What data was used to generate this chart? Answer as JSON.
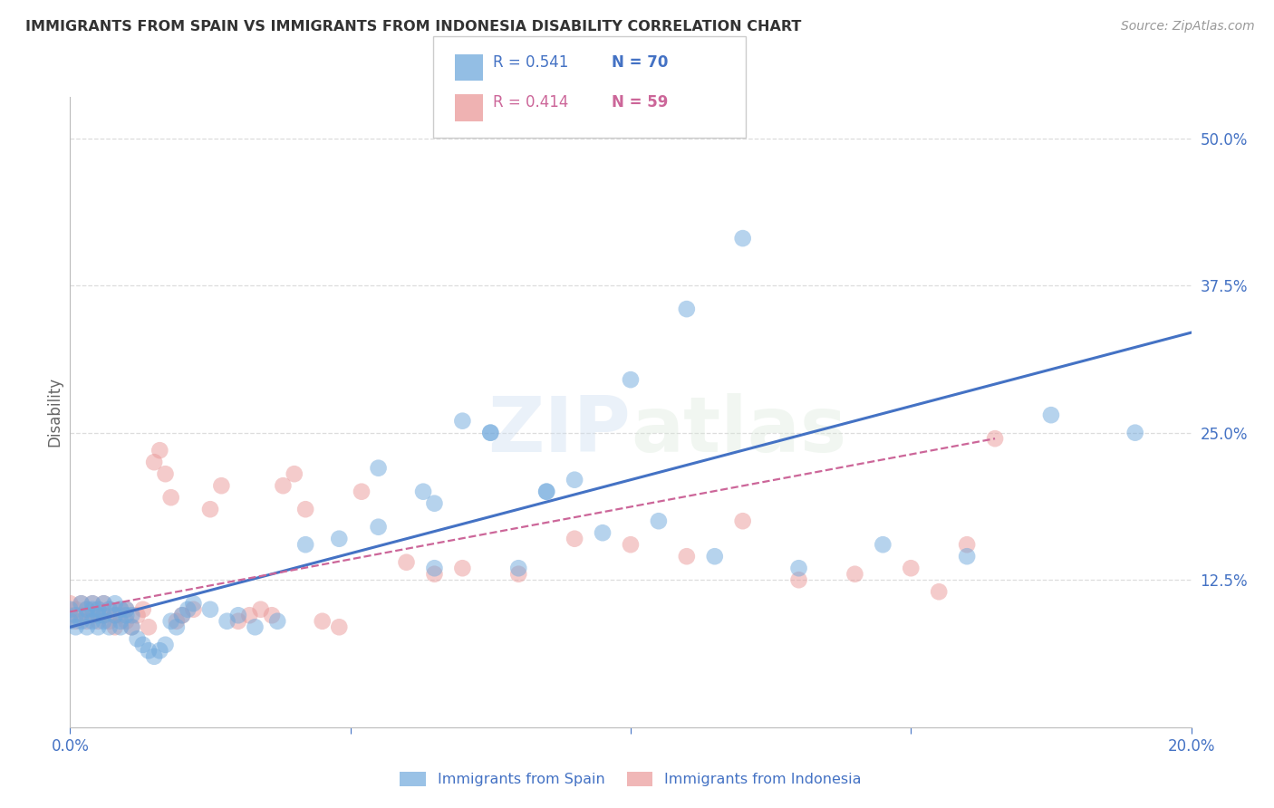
{
  "title": "IMMIGRANTS FROM SPAIN VS IMMIGRANTS FROM INDONESIA DISABILITY CORRELATION CHART",
  "source": "Source: ZipAtlas.com",
  "ylabel": "Disability",
  "ytick_labels": [
    "12.5%",
    "25.0%",
    "37.5%",
    "50.0%"
  ],
  "ytick_values": [
    0.125,
    0.25,
    0.375,
    0.5
  ],
  "xlim": [
    0.0,
    0.2
  ],
  "ylim": [
    0.0,
    0.535
  ],
  "legend_spain_r": "R = 0.541",
  "legend_spain_n": "N = 70",
  "legend_indonesia_r": "R = 0.414",
  "legend_indonesia_n": "N = 59",
  "watermark": "ZIPatlas",
  "spain_color": "#6fa8dc",
  "indonesia_color": "#ea9999",
  "spain_line_color": "#4472c4",
  "indonesia_line_color": "#cc6699",
  "spain_scatter_x": [
    0.0,
    0.0,
    0.001,
    0.001,
    0.002,
    0.002,
    0.003,
    0.003,
    0.003,
    0.004,
    0.004,
    0.004,
    0.005,
    0.005,
    0.005,
    0.006,
    0.006,
    0.006,
    0.007,
    0.007,
    0.008,
    0.008,
    0.009,
    0.009,
    0.009,
    0.01,
    0.01,
    0.011,
    0.011,
    0.012,
    0.013,
    0.014,
    0.015,
    0.016,
    0.017,
    0.018,
    0.019,
    0.02,
    0.021,
    0.022,
    0.025,
    0.028,
    0.03,
    0.033,
    0.037,
    0.042,
    0.048,
    0.055,
    0.063,
    0.07,
    0.075,
    0.085,
    0.095,
    0.105,
    0.115,
    0.13,
    0.145,
    0.16,
    0.175,
    0.19,
    0.055,
    0.065,
    0.075,
    0.085,
    0.09,
    0.1,
    0.11,
    0.12,
    0.065,
    0.08
  ],
  "spain_scatter_y": [
    0.1,
    0.09,
    0.095,
    0.085,
    0.105,
    0.09,
    0.1,
    0.085,
    0.095,
    0.1,
    0.09,
    0.105,
    0.095,
    0.085,
    0.1,
    0.09,
    0.105,
    0.095,
    0.1,
    0.085,
    0.095,
    0.105,
    0.09,
    0.1,
    0.085,
    0.095,
    0.1,
    0.085,
    0.095,
    0.075,
    0.07,
    0.065,
    0.06,
    0.065,
    0.07,
    0.09,
    0.085,
    0.095,
    0.1,
    0.105,
    0.1,
    0.09,
    0.095,
    0.085,
    0.09,
    0.155,
    0.16,
    0.17,
    0.2,
    0.26,
    0.25,
    0.2,
    0.165,
    0.175,
    0.145,
    0.135,
    0.155,
    0.145,
    0.265,
    0.25,
    0.22,
    0.19,
    0.25,
    0.2,
    0.21,
    0.295,
    0.355,
    0.415,
    0.135,
    0.135
  ],
  "indonesia_scatter_x": [
    0.0,
    0.0,
    0.001,
    0.001,
    0.002,
    0.002,
    0.003,
    0.003,
    0.004,
    0.004,
    0.005,
    0.005,
    0.006,
    0.006,
    0.007,
    0.007,
    0.008,
    0.008,
    0.009,
    0.009,
    0.01,
    0.01,
    0.011,
    0.012,
    0.013,
    0.014,
    0.015,
    0.016,
    0.017,
    0.018,
    0.019,
    0.02,
    0.022,
    0.025,
    0.027,
    0.03,
    0.032,
    0.034,
    0.036,
    0.038,
    0.04,
    0.042,
    0.045,
    0.048,
    0.052,
    0.06,
    0.065,
    0.07,
    0.08,
    0.09,
    0.1,
    0.11,
    0.12,
    0.13,
    0.14,
    0.15,
    0.155,
    0.16,
    0.165
  ],
  "indonesia_scatter_y": [
    0.095,
    0.105,
    0.1,
    0.09,
    0.095,
    0.105,
    0.09,
    0.1,
    0.095,
    0.105,
    0.09,
    0.1,
    0.105,
    0.095,
    0.09,
    0.1,
    0.095,
    0.085,
    0.1,
    0.095,
    0.09,
    0.1,
    0.085,
    0.095,
    0.1,
    0.085,
    0.225,
    0.235,
    0.215,
    0.195,
    0.09,
    0.095,
    0.1,
    0.185,
    0.205,
    0.09,
    0.095,
    0.1,
    0.095,
    0.205,
    0.215,
    0.185,
    0.09,
    0.085,
    0.2,
    0.14,
    0.13,
    0.135,
    0.13,
    0.16,
    0.155,
    0.145,
    0.175,
    0.125,
    0.13,
    0.135,
    0.115,
    0.155,
    0.245
  ],
  "spain_line_x": [
    0.0,
    0.2
  ],
  "spain_line_y": [
    0.085,
    0.335
  ],
  "indonesia_line_x": [
    0.0,
    0.165
  ],
  "indonesia_line_y": [
    0.098,
    0.245
  ],
  "background_color": "#ffffff",
  "grid_color": "#dddddd",
  "title_color": "#333333",
  "tick_label_color": "#4472c4",
  "ylabel_color": "#666666"
}
